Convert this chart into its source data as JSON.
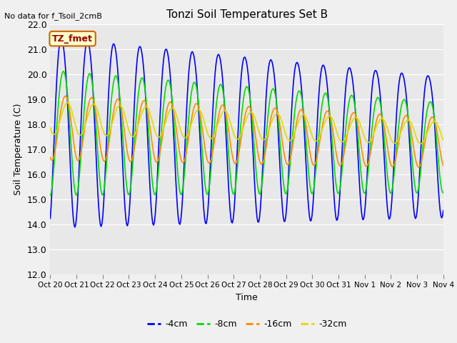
{
  "title": "Tonzi Soil Temperatures Set B",
  "xlabel": "Time",
  "ylabel": "Soil Temperature (C)",
  "annotation": "No data for f_Tsoil_2cmB",
  "legend_label": "TZ_fmet",
  "ylim": [
    12.0,
    22.0
  ],
  "yticks": [
    12.0,
    13.0,
    14.0,
    15.0,
    16.0,
    17.0,
    18.0,
    19.0,
    20.0,
    21.0,
    22.0
  ],
  "xtick_labels": [
    "Oct 20",
    "Oct 21",
    "Oct 22",
    "Oct 23",
    "Oct 24",
    "Oct 25",
    "Oct 26",
    "Oct 27",
    "Oct 28",
    "Oct 29",
    "Oct 30",
    "Oct 31",
    "Nov 1",
    "Nov 2",
    "Nov 3",
    "Nov 4"
  ],
  "colors": {
    "4cm": "#0000ff",
    "8cm": "#00dd00",
    "16cm": "#ff8c00",
    "32cm": "#dddd00"
  },
  "legend_labels": [
    "-4cm",
    "-8cm",
    "-16cm",
    "-32cm"
  ],
  "fig_bg": "#f0f0f0",
  "plot_bg": "#e8e8e8",
  "grid_color": "#ffffff",
  "n_points": 480,
  "n_days": 15
}
